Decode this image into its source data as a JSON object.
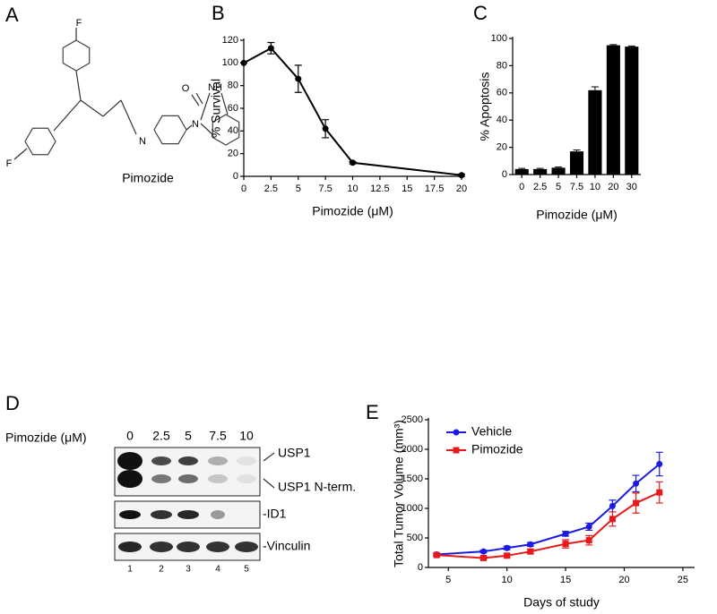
{
  "panel_labels": [
    "A",
    "B",
    "C",
    "D",
    "E"
  ],
  "structure": {
    "name": "Pimozide",
    "atoms": [
      "F",
      "F",
      "O",
      "NH",
      "N",
      "N"
    ]
  },
  "blot": {
    "treatment_label": "Pimozide (μM)",
    "doses": [
      "0",
      "2.5",
      "5",
      "7.5",
      "10"
    ],
    "lanes": [
      "1",
      "2",
      "3",
      "4",
      "5"
    ],
    "bands": [
      "USP1",
      "USP1 N-term.",
      "-ID1",
      "-Vinculin"
    ]
  },
  "chart_data": [
    {
      "type": "line",
      "x_label": "Pimozide (μM)",
      "y_label": "% Survival",
      "x": [
        0,
        2.5,
        5,
        7.5,
        10,
        20
      ],
      "values": [
        100,
        113,
        86,
        42,
        12,
        1
      ],
      "errors": [
        0,
        5,
        12,
        8,
        1,
        1
      ],
      "color": "#000000",
      "xlim": [
        0,
        20
      ],
      "xticks": [
        0,
        2.5,
        5,
        7.5,
        10,
        12.5,
        15,
        17.5,
        20
      ],
      "ylim": [
        0,
        120
      ],
      "yticks": [
        0,
        20,
        40,
        60,
        80,
        100,
        120
      ]
    },
    {
      "type": "bar",
      "x_label": "Pimozide (μM)",
      "y_label": "% Apoptosis",
      "categories": [
        "0",
        "2.5",
        "5",
        "7.5",
        "10",
        "20",
        "30"
      ],
      "values": [
        4,
        4,
        5,
        17,
        62,
        95,
        94
      ],
      "errors": [
        0.5,
        0.5,
        0.5,
        1,
        2.5,
        0.5,
        0.5
      ],
      "color": "#000000",
      "ylim": [
        0,
        100
      ],
      "yticks": [
        0,
        20,
        40,
        60,
        80,
        100
      ]
    },
    {
      "type": "line",
      "x_label": "Days of study",
      "y_label": "Total Tumor Volume (mm³)",
      "legend": "upper left",
      "x": [
        4,
        8,
        10,
        12,
        15,
        17,
        19,
        21,
        23
      ],
      "series": [
        {
          "name": "Vehicle",
          "color": "#1a1ae0",
          "marker": "circle",
          "values": [
            220,
            270,
            330,
            390,
            570,
            690,
            1040,
            1420,
            1750
          ],
          "errors": [
            20,
            20,
            30,
            30,
            40,
            60,
            100,
            140,
            200
          ]
        },
        {
          "name": "Pimozide",
          "color": "#e8191a",
          "marker": "square",
          "values": [
            210,
            160,
            200,
            270,
            400,
            460,
            820,
            1090,
            1270
          ],
          "errors": [
            20,
            20,
            30,
            40,
            70,
            80,
            120,
            170,
            180
          ]
        }
      ],
      "xlim": [
        3.3,
        26
      ],
      "xticks": [
        5,
        10,
        15,
        20,
        25
      ],
      "ylim": [
        0,
        2500
      ],
      "yticks": [
        0,
        500,
        1000,
        1500,
        2000,
        2500
      ]
    }
  ]
}
